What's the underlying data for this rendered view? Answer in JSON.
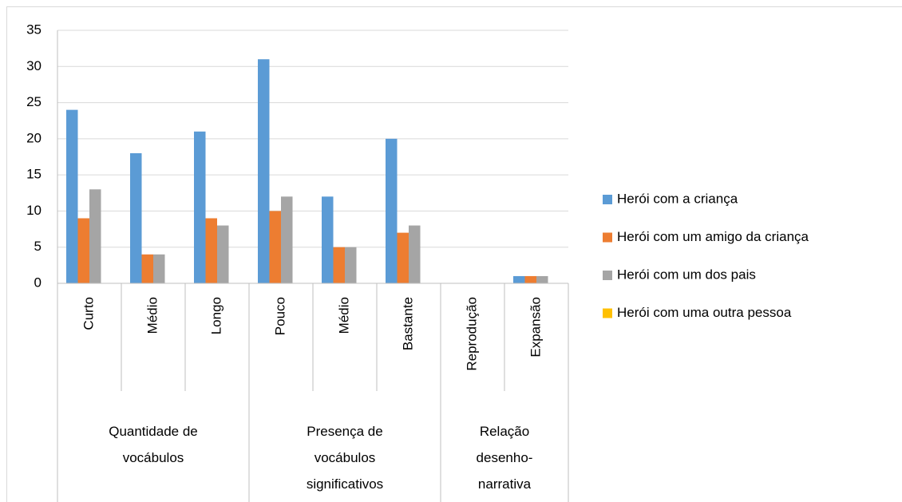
{
  "chart_data": {
    "type": "bar",
    "categories": [
      "Curto",
      "Médio",
      "Longo",
      "Pouco",
      "Médio",
      "Bastante",
      "Reprodução",
      "Expansão"
    ],
    "groups": [
      {
        "label": "Quantidade de vocábulos",
        "span": 3
      },
      {
        "label": "Presença de vocábulos significativos",
        "span": 3
      },
      {
        "label": "Relação desenho-narrativa",
        "span": 2
      }
    ],
    "series": [
      {
        "name": "Herói com a criança",
        "color": "#5b9bd5",
        "values": [
          24,
          18,
          21,
          31,
          12,
          20,
          0,
          1
        ]
      },
      {
        "name": "Herói com um amigo da criança",
        "color": "#ed7d31",
        "values": [
          9,
          4,
          9,
          10,
          5,
          7,
          0,
          1
        ]
      },
      {
        "name": "Herói com um dos pais",
        "color": "#a5a5a5",
        "values": [
          13,
          4,
          8,
          12,
          5,
          8,
          0,
          1
        ]
      },
      {
        "name": "Herói com uma outra pessoa",
        "color": "#ffc000",
        "values": [
          0,
          0,
          0,
          0,
          0,
          0,
          0,
          0
        ]
      }
    ],
    "ylim": [
      0,
      35
    ],
    "yticks": [
      0,
      5,
      10,
      15,
      20,
      25,
      30,
      35
    ],
    "grid": true,
    "legend": "right"
  }
}
